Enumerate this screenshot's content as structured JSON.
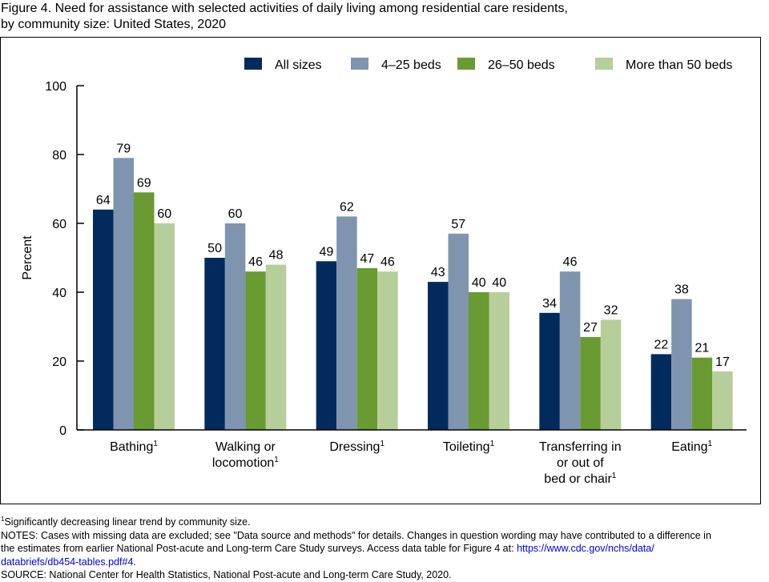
{
  "figure": {
    "title_line1": "Figure 4. Need for assistance with selected activities of daily living among residential care residents,",
    "title_line2": "by community size: United States, 2020"
  },
  "chart_data": {
    "type": "bar",
    "title": "Need for assistance with selected activities of daily living among residential care residents, by community size: United States, 2020",
    "xlabel": "",
    "ylabel": "Percent",
    "ylim": [
      0,
      100
    ],
    "yticks": [
      0,
      20,
      40,
      60,
      80,
      100
    ],
    "grid": false,
    "legend_position": "top-right",
    "categories": [
      {
        "lines": [
          "Bathing"
        ],
        "footnote": "1"
      },
      {
        "lines": [
          "Walking or",
          "locomotion"
        ],
        "footnote": "1"
      },
      {
        "lines": [
          "Dressing"
        ],
        "footnote": "1"
      },
      {
        "lines": [
          "Toileting"
        ],
        "footnote": "1"
      },
      {
        "lines": [
          "Transferring in",
          "or out of",
          "bed or chair"
        ],
        "footnote": "1"
      },
      {
        "lines": [
          "Eating"
        ],
        "footnote": "1"
      }
    ],
    "series": [
      {
        "name": "All sizes",
        "color": "#002b5c",
        "values": [
          64,
          50,
          49,
          43,
          34,
          22
        ]
      },
      {
        "name": "4–25 beds",
        "color": "#7f94ae",
        "values": [
          79,
          60,
          62,
          57,
          46,
          38
        ]
      },
      {
        "name": "26–50 beds",
        "color": "#6a9a32",
        "values": [
          69,
          46,
          47,
          40,
          27,
          21
        ]
      },
      {
        "name": "More than 50 beds",
        "color": "#b6cf9a",
        "values": [
          60,
          48,
          46,
          40,
          32,
          17
        ]
      }
    ]
  },
  "notes": {
    "footnote": "Significantly decreasing linear trend by community size.",
    "footnote_marker": "1",
    "notes_line1": "NOTES: Cases with missing data are excluded; see \"Data source and methods\" for details. Changes in question wording may have contributed to a difference in",
    "notes_line2": "the estimates from earlier National Post-acute and Long-term Care Study surveys. Access data table for Figure 4 at: ",
    "link_part1": "https://www.cdc.gov/nchs/data/",
    "link_part2": "databriefs/db454-tables.pdf#4",
    "link_end": ".",
    "source": "SOURCE: National Center for Health Statistics, National Post-acute and Long-term Care Study, 2020."
  }
}
